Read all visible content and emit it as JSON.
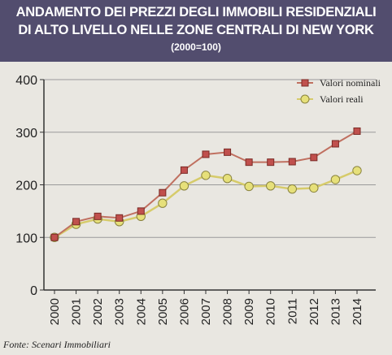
{
  "header": {
    "title_line1": "ANDAMENTO DEI PREZZI DEGLI IMMOBILI RESIDENZIALI",
    "title_line2": "DI ALTO LIVELLO NELLE ZONE CENTRALI DI NEW YORK",
    "subtitle": "(2000=100)"
  },
  "source": "Fonte: Scenari Immobiliari",
  "colors": {
    "header_bg": "#524d6e",
    "header_text": "#ffffff",
    "background": "#e9e7e1",
    "nominal_line": "#c07060",
    "nominal_marker": "#c0504d",
    "real_line": "#d6cb6a",
    "real_marker": "#e6e07a"
  },
  "chart_data": {
    "type": "line",
    "title": "ANDAMENTO DEI PREZZI DEGLI IMMOBILI RESIDENZIALI DI ALTO LIVELLO NELLE ZONE CENTRALI DI NEW YORK",
    "subtitle": "(2000=100)",
    "xlabel": "",
    "ylabel": "",
    "x": [
      "2000",
      "2001",
      "2002",
      "2003",
      "2004",
      "2005",
      "2006",
      "2007",
      "2008",
      "2009",
      "2010",
      "2011",
      "2012",
      "2013",
      "2014"
    ],
    "ylim": [
      0,
      400
    ],
    "yticks": [
      0,
      100,
      200,
      300,
      400
    ],
    "grid": true,
    "legend_position": "top-right",
    "series": [
      {
        "name": "Valori nominali",
        "marker": "square",
        "values": [
          100,
          130,
          140,
          137,
          150,
          185,
          228,
          258,
          262,
          243,
          243,
          244,
          252,
          278,
          302
        ]
      },
      {
        "name": "Valori reali",
        "marker": "circle",
        "values": [
          100,
          125,
          135,
          130,
          140,
          165,
          198,
          218,
          212,
          197,
          198,
          192,
          194,
          210,
          227
        ]
      }
    ]
  }
}
